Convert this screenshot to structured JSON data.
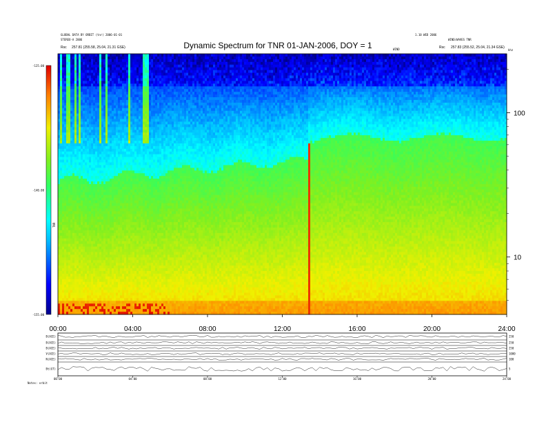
{
  "header": {
    "left_line1": "GLOBAL DATA BY ORBIT (tnr) 2006-01-01",
    "left_line2": "STEREO-A 2006",
    "left_rsc_label": "Rsc",
    "left_rsc_value": "257.81 (255.58, 25.04, 21.31 GSE)",
    "right_line1": "1.10 WED 2006",
    "right_line2": "WIND/WAVES TNR",
    "right_rsc_label": "Rsc",
    "right_rsc_value": "257.83 (255.52, 25.04, 21.34 GSE)",
    "right_corner_label": "khz",
    "right_small_label": "WIND"
  },
  "chart_data": {
    "type": "heatmap",
    "title": "Dynamic Spectrum for TNR 01-JAN-2006, DOY = 1",
    "xlabel": "",
    "ylabel": "",
    "x_tick_labels": [
      "00:00",
      "04:00",
      "08:00",
      "12:00",
      "16:00",
      "20:00",
      "24:00"
    ],
    "x_ticks_hours": [
      0,
      4,
      8,
      12,
      16,
      20,
      24
    ],
    "xlim_hours": [
      0,
      24
    ],
    "y_scale": "log",
    "y_unit": "kHz",
    "ylim_khz": [
      4,
      256
    ],
    "y_tick_labels": [
      "10",
      "100"
    ],
    "y_ticks_khz": [
      10,
      100
    ],
    "colorbar": {
      "label": "TNR",
      "range": [
        -155.0,
        -125.0
      ],
      "tick_labels": [
        "-125.00",
        "-140.00",
        "-155.00"
      ],
      "tick_values": [
        -125.0,
        -140.0,
        -155.0
      ]
    },
    "features": {
      "background_transition_hour": 13.4,
      "type_iii_burst_hour": 13.4,
      "plasma_line_khz_before": [
        30,
        45
      ],
      "plasma_line_khz_after": [
        55,
        75
      ]
    }
  },
  "panels": {
    "labels": [
      "B(ACE)",
      "B(ACE)",
      "B(ACE)",
      "V(ACE)",
      "N(ACE)",
      "Bt(GT)"
    ],
    "right_scale_labels": [
      "250",
      "250",
      "250",
      "1000",
      "100",
      "5"
    ],
    "bottom_axis_labels": [
      "00:00",
      "04:00",
      "08:00",
      "12:00",
      "16:00",
      "20:00",
      "24:00"
    ],
    "footer_note": "Notes: orbit"
  }
}
